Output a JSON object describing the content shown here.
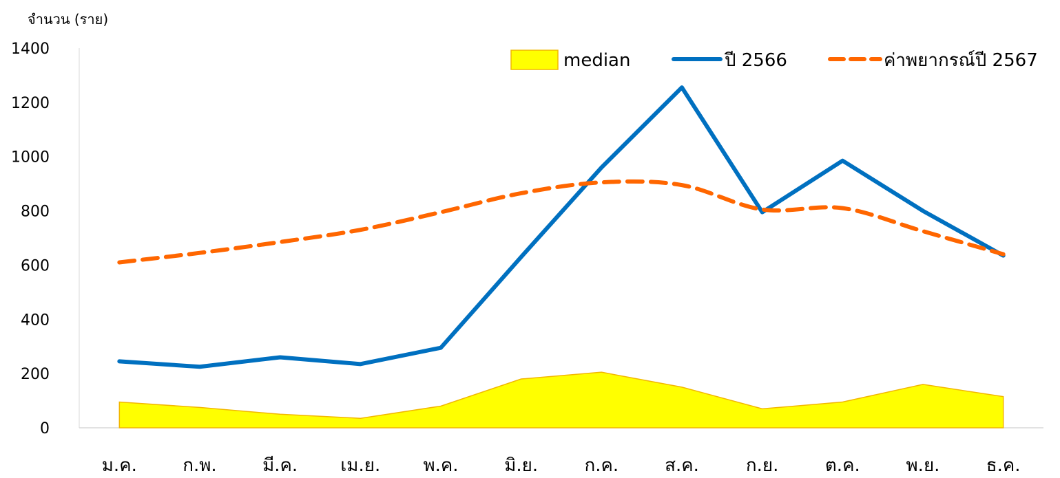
{
  "chart_data": {
    "type": "line",
    "title": "",
    "xlabel": "",
    "ylabel": "จำนวน (ราย)",
    "categories": [
      "ม.ค.",
      "ก.พ.",
      "มี.ค.",
      "เม.ย.",
      "พ.ค.",
      "มิ.ย.",
      "ก.ค.",
      "ส.ค.",
      "ก.ย.",
      "ต.ค.",
      "พ.ย.",
      "ธ.ค."
    ],
    "ylim": [
      0,
      1400
    ],
    "yticks": [
      0,
      200,
      400,
      600,
      800,
      1000,
      1200,
      1400
    ],
    "grid": false,
    "legend_position": "top-right",
    "series": [
      {
        "name": "median",
        "kind": "area",
        "color": "#FFFF00",
        "edge_color": "#F2B700",
        "values": [
          95,
          75,
          50,
          35,
          80,
          180,
          205,
          150,
          70,
          95,
          160,
          115
        ]
      },
      {
        "name": "ปี 2566",
        "kind": "line",
        "color": "#0070C0",
        "values": [
          245,
          225,
          260,
          235,
          295,
          630,
          960,
          1255,
          795,
          985,
          800,
          635
        ]
      },
      {
        "name": "ค่าพยากรณ์ปี 2567",
        "kind": "dashed-line",
        "color": "#FF6600",
        "values": [
          610,
          645,
          685,
          730,
          795,
          865,
          905,
          895,
          805,
          810,
          725,
          640
        ]
      }
    ]
  }
}
